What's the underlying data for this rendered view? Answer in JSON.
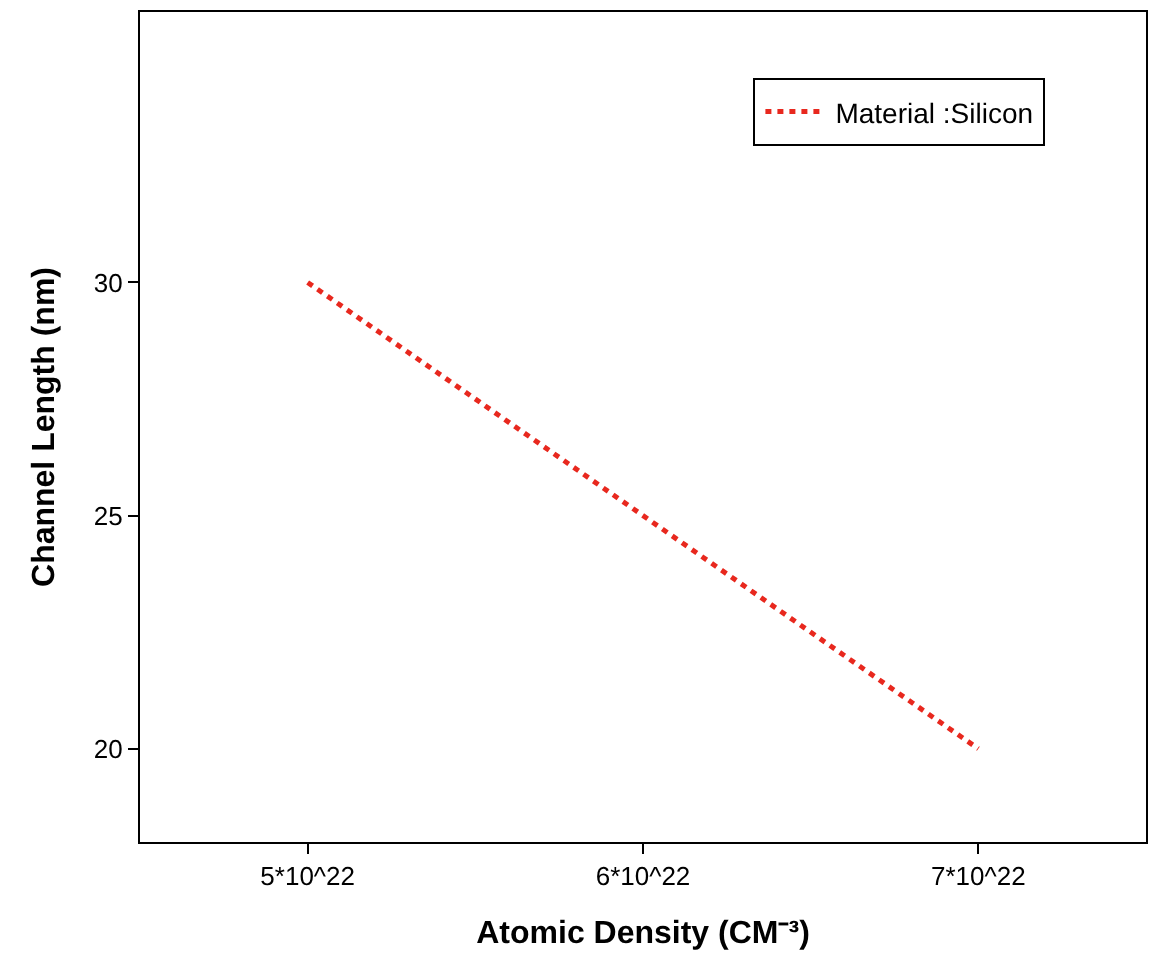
{
  "chart_data": {
    "type": "line",
    "xlabel": "Atomic Density (CM⁻³)",
    "ylabel": "Channel Length (nm)",
    "x": [
      5e+22,
      7e+22
    ],
    "series": [
      {
        "name": "Material :Silicon",
        "color": "#e8281e",
        "values": [
          30,
          20
        ]
      }
    ],
    "xlim": [
      4.5e+22,
      7.5e+22
    ],
    "xticks": [
      {
        "value": 5e+22,
        "label": "5*10^22"
      },
      {
        "value": 6e+22,
        "label": "6*10^22"
      },
      {
        "value": 7e+22,
        "label": "7*10^22"
      }
    ],
    "ylim": [
      18,
      35.8
    ],
    "yticks": [
      20,
      25,
      30
    ],
    "legend": "top right",
    "marker": "none",
    "line_style": "dotted"
  }
}
